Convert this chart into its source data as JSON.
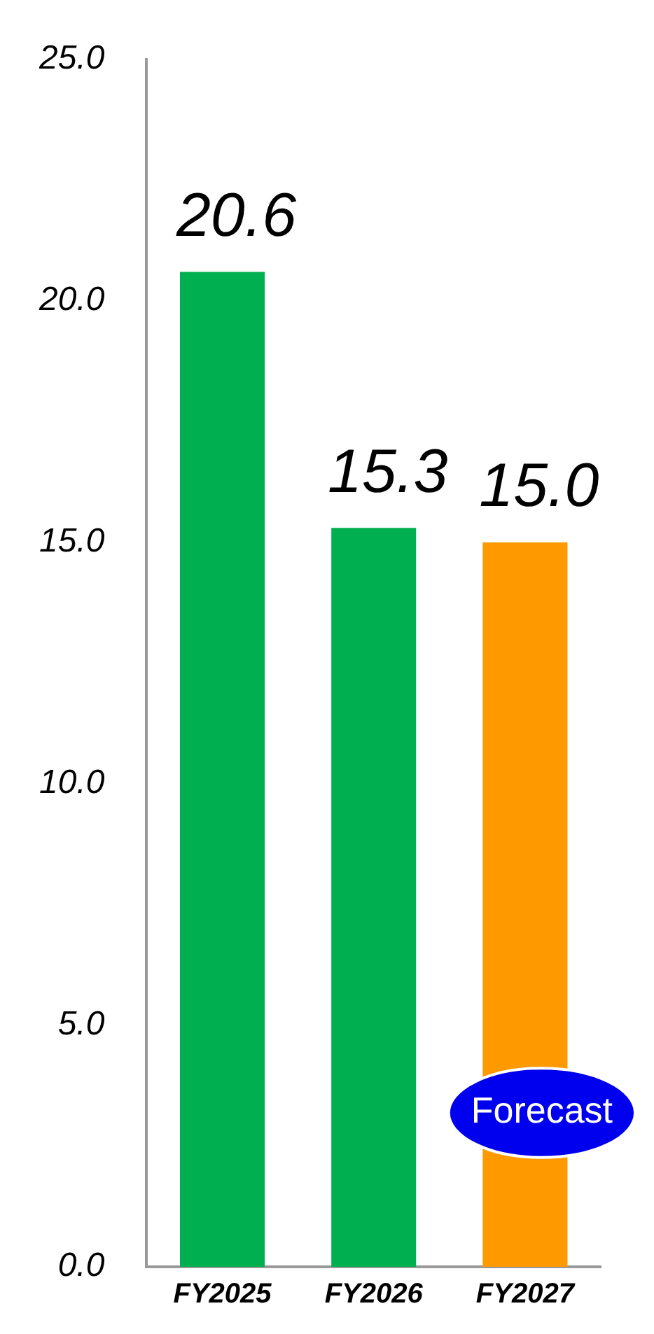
{
  "chart_data": {
    "type": "bar",
    "categories": [
      "FY2025",
      "FY2026",
      "FY2027"
    ],
    "values": [
      20.6,
      15.3,
      15.0
    ],
    "colors": [
      "#00b050",
      "#00b050",
      "#ff9900"
    ],
    "ylim": [
      0,
      25
    ],
    "yticks": [
      {
        "value": 0,
        "label": "0.0"
      },
      {
        "value": 5,
        "label": "5.0"
      },
      {
        "value": 10,
        "label": "10.0"
      },
      {
        "value": 15,
        "label": "15.0"
      },
      {
        "value": 20,
        "label": "20.0"
      },
      {
        "value": 25,
        "label": "25.0"
      }
    ],
    "value_labels": [
      "20.6",
      "15.3",
      "15.0"
    ],
    "grid": false,
    "legend": false,
    "annotations": [
      "Forecast"
    ]
  }
}
